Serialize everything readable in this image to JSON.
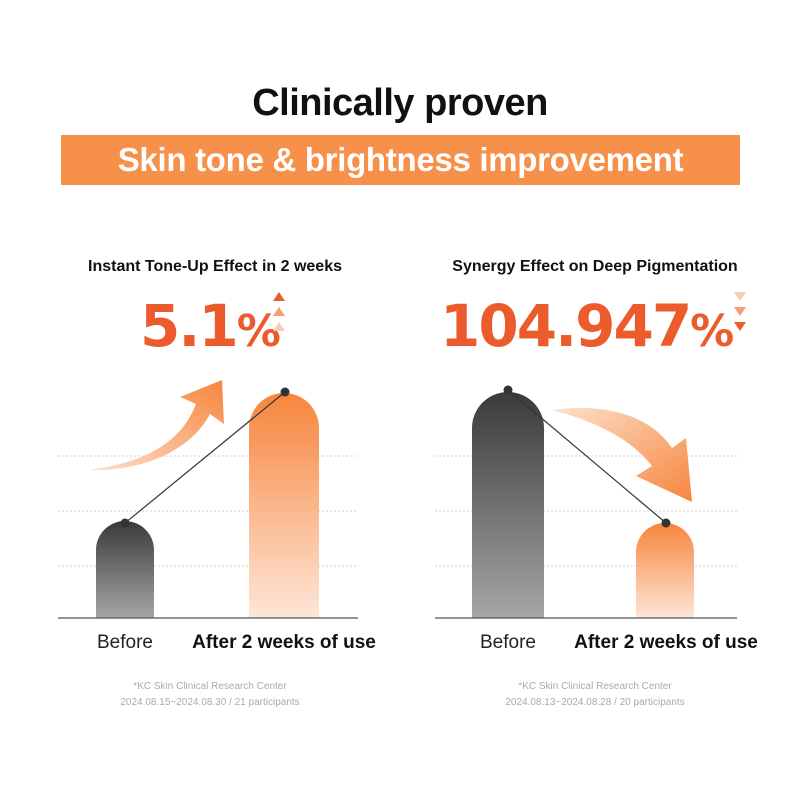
{
  "header": {
    "title": "Clinically proven",
    "banner": "Skin tone & brightness improvement"
  },
  "colors": {
    "accent": "#f7904a",
    "highlight": "#ec5b2c",
    "dark_bar": "#3d3d3d",
    "text": "#111111"
  },
  "left_panel": {
    "subtitle": "Instant Tone-Up Effect in 2 weeks",
    "value": "5.1",
    "unit": "%",
    "trend_icon": "triple-up-arrow-icon",
    "before_label": "Before",
    "after_label": "After 2 weeks of use",
    "footnote_line1": "*KC Skin Clinical Research Center",
    "footnote_line2": "2024.08.15~2024.08.30 / 21 participants"
  },
  "right_panel": {
    "subtitle": "Synergy Effect on Deep Pigmentation",
    "value": "104.947",
    "unit": "%",
    "trend_icon": "triple-down-arrow-icon",
    "before_label": "Before",
    "after_label": "After 2 weeks of use",
    "footnote_line1": "*KC Skin Clinical Research Center",
    "footnote_line2": "2024.08.13~2024.08.28 / 20 participants"
  }
}
